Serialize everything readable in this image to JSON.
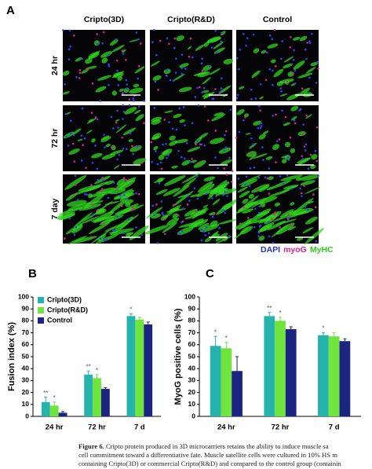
{
  "panel_a": {
    "label": "A",
    "columns": [
      "Cripto(3D)",
      "Cripto(R&D)",
      "Control"
    ],
    "rows": [
      "24 hr",
      "72 hr",
      "7 day"
    ],
    "stain_legend": [
      {
        "text": "DAPI",
        "color": "#1f2fd0"
      },
      {
        "text": "myoG",
        "color": "#e0208a"
      },
      {
        "text": "MyHC",
        "color": "#2ecc1a"
      }
    ]
  },
  "chart_data": [
    {
      "type": "bar",
      "panel": "B",
      "ylabel": "Fusion index (%)",
      "categories": [
        "24 hr",
        "72 hr",
        "7 d"
      ],
      "ylim": [
        0,
        100
      ],
      "yticks": [
        0,
        10,
        20,
        30,
        40,
        50,
        60,
        70,
        80,
        90,
        100
      ],
      "legend": "top-left",
      "series": [
        {
          "name": "Cripto(3D)",
          "color": "#27b3ad",
          "values": [
            12,
            35,
            84
          ],
          "errors": [
            4,
            3,
            2
          ],
          "annotations": [
            "**",
            "**",
            "*"
          ]
        },
        {
          "name": "Cripto(R&D)",
          "color": "#6ee43c",
          "values": [
            9,
            32,
            81
          ],
          "errors": [
            3,
            3,
            2
          ],
          "annotations": [
            "*",
            "*",
            null
          ]
        },
        {
          "name": "Control",
          "color": "#1b2480",
          "values": [
            3,
            23,
            77
          ],
          "errors": [
            1,
            1,
            2
          ]
        }
      ]
    },
    {
      "type": "bar",
      "panel": "C",
      "ylabel": "MyoG positive cells (%)",
      "categories": [
        "24 hr",
        "72 hr",
        "7 d"
      ],
      "ylim": [
        0,
        100
      ],
      "yticks": [
        0,
        10,
        20,
        30,
        40,
        50,
        60,
        70,
        80,
        90,
        100
      ],
      "series": [
        {
          "color": "#27b3ad",
          "values": [
            59,
            84,
            68
          ],
          "errors": [
            8,
            3,
            2
          ],
          "annotations": [
            "*",
            "**",
            "*"
          ]
        },
        {
          "color": "#6ee43c",
          "values": [
            57,
            80,
            67
          ],
          "errors": [
            5,
            3,
            3
          ],
          "annotations": [
            "*",
            "*",
            null
          ]
        },
        {
          "color": "#1b2480",
          "values": [
            38,
            73,
            63
          ],
          "errors": [
            12,
            2,
            2
          ]
        }
      ]
    }
  ],
  "caption": {
    "label": "Figure 6.",
    "lines": [
      "Cripto protein produced in 3D microcarriers retains the ability to induce muscle sa",
      "cell commitment toward a differentiative fate. Muscle satellite cells were cultured in 10% HS m",
      "containing Cripto(3D) or commercial Cripto(R&D) and compared to the control group (containin"
    ]
  }
}
